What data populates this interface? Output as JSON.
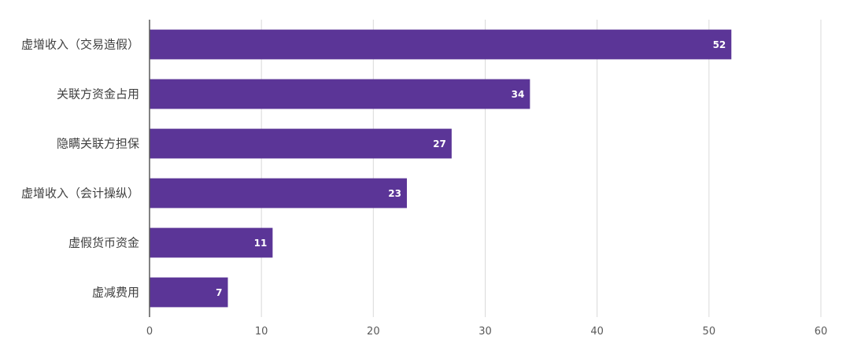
{
  "chart_data": {
    "type": "bar",
    "orientation": "horizontal",
    "categories": [
      "虚增收入（交易造假）",
      "关联方资金占用",
      "隐瞒关联方担保",
      "虚增收入（会计操纵）",
      "虚假货币资金",
      "虚减费用"
    ],
    "values": [
      52,
      34,
      27,
      23,
      11,
      7
    ],
    "data_labels": [
      "52",
      "34",
      "27",
      "23",
      "11",
      "7"
    ],
    "xlim": [
      0,
      60
    ],
    "xticks": [
      "0",
      "10",
      "20",
      "30",
      "40",
      "50",
      "60"
    ],
    "title": "",
    "xlabel": "",
    "ylabel": "",
    "grid": "vertical",
    "legend": "none",
    "bar_color": "#5B3597",
    "axis_color": "#595959",
    "grid_color": "#D9D9D9"
  }
}
